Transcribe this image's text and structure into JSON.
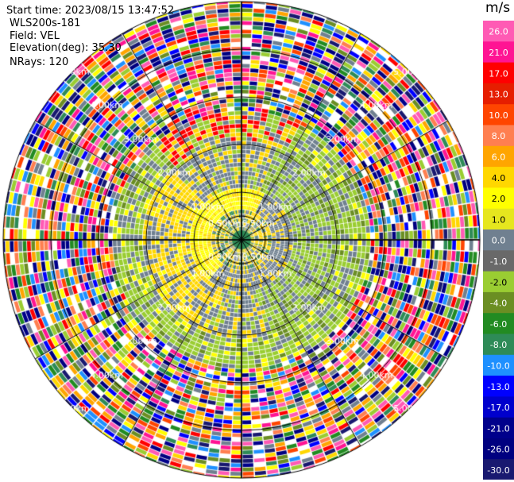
{
  "header": {
    "start_time": "Start time: 2023/08/15 13:47:52",
    "instrument": "WLS200s-181",
    "field": "Field: VEL",
    "elevation": "Elevation(deg): 35.30",
    "nrays": "NRays: 120"
  },
  "chart_data": {
    "type": "heatmap",
    "projection": "polar",
    "field": "VEL",
    "units": "m/s",
    "range_rings_km": [
      0.5,
      1.0,
      2.0,
      3.0,
      4.0,
      5.0
    ],
    "ring_labels": [
      "0.50km",
      "1.00km",
      "2.00km",
      "3.00km",
      "4.00km",
      "5.00km"
    ],
    "colorbar": {
      "label": "m/s",
      "ticks": [
        "26.0",
        "21.0",
        "17.0",
        "13.0",
        "10.0",
        "8.0",
        "6.0",
        "4.0",
        "2.0",
        "1.0",
        "0.0",
        "-1.0",
        "-2.0",
        "-4.0",
        "-6.0",
        "-8.0",
        "-10.0",
        "-13.0",
        "-17.0",
        "-21.0",
        "-26.0",
        "-30.0"
      ],
      "colors": [
        "#ff5ab4",
        "#ff1493",
        "#ff0000",
        "#e61e00",
        "#ff4500",
        "#ff7f50",
        "#ffa500",
        "#ffd700",
        "#ffff00",
        "#e6e61e",
        "#708090",
        "#696969",
        "#9acd32",
        "#6b8e23",
        "#228b22",
        "#2e8b57",
        "#1e90ff",
        "#0000ff",
        "#0000cd",
        "#00008b",
        "#000080",
        "#191970"
      ]
    }
  }
}
